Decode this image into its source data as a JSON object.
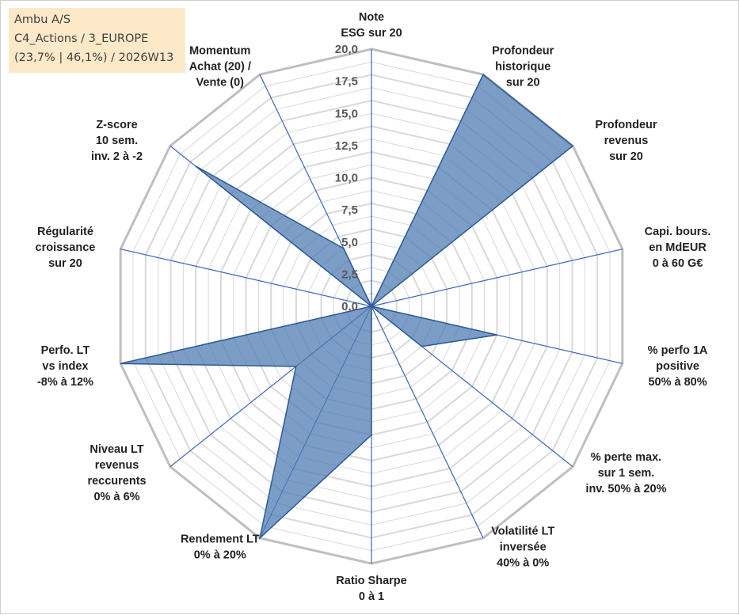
{
  "info_box": {
    "line1": "Ambu A/S",
    "line2": "C4_Actions / 3_EUROPE",
    "line3": "(23,7% | 46,1%) / 2026W13"
  },
  "chart_data": {
    "type": "radar",
    "rmax": 20,
    "rmin": 0,
    "ticks": [
      "0,0",
      "2,5",
      "5,0",
      "7,5",
      "10,0",
      "12,5",
      "15,0",
      "17,5",
      "20,0"
    ],
    "axes": [
      [
        "Note",
        "ESG sur 20"
      ],
      [
        "Profondeur",
        "historique",
        "sur 20"
      ],
      [
        "Profondeur",
        "revenus",
        "sur 20"
      ],
      [
        "Capi. bours.",
        "en MdEUR",
        "0 à 60 G€"
      ],
      [
        "% perfo 1A",
        "positive",
        "50% à 80%"
      ],
      [
        "% perte max.",
        "sur 1 sem.",
        "inv. 50% à 20%"
      ],
      [
        "Volatilité LT",
        "inversée",
        "40% à 0%"
      ],
      [
        "Ratio Sharpe",
        "0 à 1"
      ],
      [
        "Rendement LT",
        "0% à 20%"
      ],
      [
        "Niveau LT",
        "revenus",
        "reccurents",
        "0% à 6%"
      ],
      [
        "Perfo. LT",
        "vs index",
        "-8% à 12%"
      ],
      [
        "Régularité",
        "croissance",
        "sur 20"
      ],
      [
        "Z-score",
        "10 sem.",
        "inv. 2 à -2"
      ],
      [
        "Momentum",
        "Achat (20) /",
        "Vente (0)"
      ]
    ],
    "series": [
      {
        "values": [
          0,
          20,
          20,
          0,
          10,
          5,
          0,
          10,
          20,
          7.5,
          20,
          0,
          17.5,
          5
        ],
        "fill": "#4f7cb3",
        "fill_opacity": 0.75,
        "stroke": "#2e5b95"
      }
    ],
    "spoke_color": "#3a67b8",
    "grid_color": "#d9d9d9",
    "outer_ring_color": "#bfbfbf",
    "legend": "none"
  }
}
